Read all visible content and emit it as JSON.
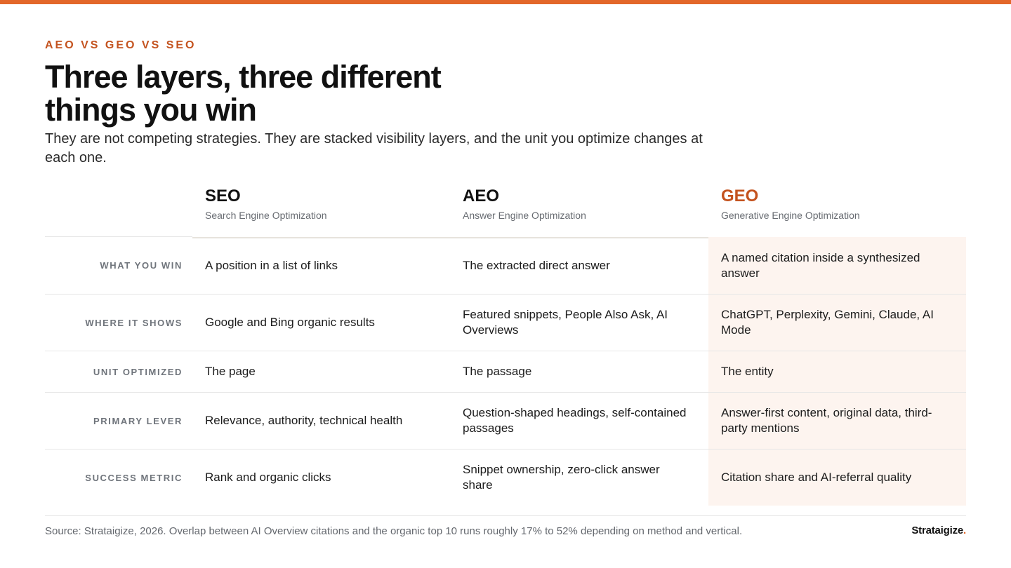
{
  "header": {
    "eyebrow": "AEO VS GEO VS SEO",
    "title": "Three layers, three different things you win",
    "subtitle": "They are not competing strategies. They are stacked visibility layers, and the unit you optimize changes at each one."
  },
  "table": {
    "columns": [
      {
        "name": "SEO",
        "subtitle": "Search Engine Optimization"
      },
      {
        "name": "AEO",
        "subtitle": "Answer Engine Optimization"
      },
      {
        "name": "GEO",
        "subtitle": "Generative Engine Optimization"
      }
    ],
    "rows": [
      {
        "label": "WHAT YOU WIN",
        "seo": "A position in a list of links",
        "aeo": "The extracted direct answer",
        "geo": "A named citation inside a synthesized answer"
      },
      {
        "label": "WHERE IT SHOWS",
        "seo": "Google and Bing organic results",
        "aeo": "Featured snippets, People Also Ask, AI Overviews",
        "geo": "ChatGPT, Perplexity, Gemini, Claude, AI Mode"
      },
      {
        "label": "UNIT OPTIMIZED",
        "seo": "The page",
        "aeo": "The passage",
        "geo": "The entity"
      },
      {
        "label": "PRIMARY LEVER",
        "seo": "Relevance, authority, technical health",
        "aeo": "Question-shaped headings, self-contained passages",
        "geo": "Answer-first content, original data, third-party mentions"
      },
      {
        "label": "SUCCESS METRIC",
        "seo": "Rank and organic clicks",
        "aeo": "Snippet ownership, zero-click answer share",
        "geo": "Citation share and AI-referral quality"
      }
    ]
  },
  "footer": {
    "source": "Source: Strataigize, 2026. Overlap between AI Overview citations and the organic top 10 runs roughly 17% to 52% depending on method and vertical.",
    "brand": "Strataigize",
    "brand_dot": "."
  },
  "colors": {
    "accent": "#e3672a",
    "accent_text": "#c4531f",
    "geo_fill": "#fdf4ef"
  }
}
